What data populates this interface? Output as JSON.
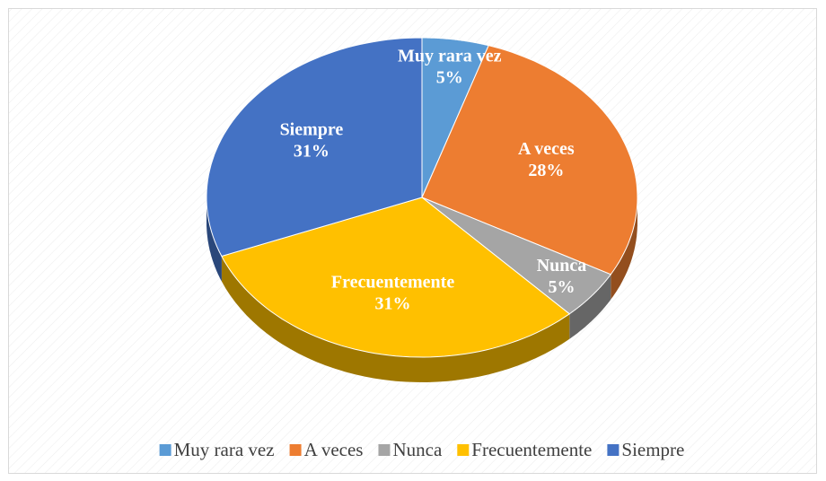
{
  "chart_data": {
    "type": "pie3d",
    "categories": [
      "Muy rara vez",
      "A veces",
      "Nunca",
      "Frecuentemente",
      "Siempre"
    ],
    "values": [
      5,
      28,
      5,
      31,
      31
    ],
    "value_labels": [
      "5%",
      "28%",
      "5%",
      "31%",
      "31%"
    ],
    "colors": [
      "#5b9bd5",
      "#ed7d31",
      "#a5a5a5",
      "#ffc000",
      "#4472c4"
    ],
    "legend": "bottom"
  }
}
